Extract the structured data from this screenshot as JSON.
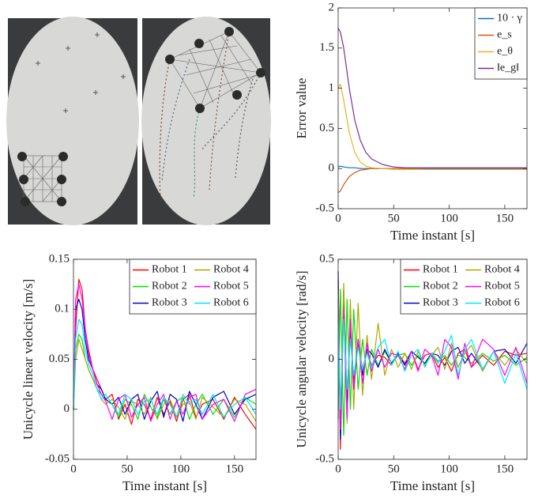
{
  "chart_data": [
    {
      "type": "line",
      "xlabel": "Time instant [s]",
      "ylabel": "Error value",
      "x": [
        0,
        2,
        5,
        10,
        15,
        20,
        25,
        30,
        40,
        50,
        60,
        80,
        100,
        130,
        170
      ],
      "series": [
        {
          "name": "10 · γ",
          "color": "#0072bd",
          "values": [
            0.02,
            0.03,
            0.02,
            0.01,
            0.01,
            0,
            0,
            0,
            0,
            0,
            0,
            0,
            0,
            0,
            0
          ]
        },
        {
          "name": "e_s",
          "color": "#d95319",
          "values": [
            -0.3,
            -0.28,
            -0.2,
            -0.1,
            -0.05,
            -0.02,
            -0.01,
            0,
            0,
            0,
            0,
            -0.01,
            -0.01,
            -0.01,
            -0.01
          ]
        },
        {
          "name": "e_θ",
          "color": "#edb120",
          "values": [
            1.0,
            1.05,
            0.85,
            0.45,
            0.2,
            0.08,
            0.03,
            0.01,
            0,
            -0.01,
            -0.01,
            -0.01,
            -0.01,
            -0.01,
            -0.01
          ]
        },
        {
          "name": "‖e_g‖",
          "color": "#7e2f8e",
          "values": [
            1.75,
            1.7,
            1.5,
            1.0,
            0.6,
            0.35,
            0.2,
            0.12,
            0.05,
            0.02,
            0.01,
            0.01,
            0.01,
            0.01,
            0.01
          ]
        }
      ],
      "xlim": [
        0,
        170
      ],
      "ylim": [
        -0.5,
        2
      ],
      "xticks": [
        0,
        50,
        100,
        150
      ],
      "yticks": [
        -0.5,
        0,
        0.5,
        1,
        1.5,
        2
      ],
      "legend": "upper right",
      "legend_columns": 1
    },
    {
      "type": "line",
      "xlabel": "Time instant [s]",
      "ylabel": "Unicycle linear velocity [m/s]",
      "x": [
        0,
        2,
        5,
        8,
        11,
        14,
        18,
        22,
        26,
        30,
        36,
        42,
        48,
        54,
        60,
        66,
        72,
        78,
        84,
        90,
        96,
        102,
        108,
        114,
        120,
        130,
        140,
        150,
        160,
        170
      ],
      "series": [
        {
          "name": "Robot 1",
          "color": "#ff0000",
          "values": [
            0,
            0.08,
            0.13,
            0.12,
            0.08,
            0.06,
            0.04,
            0.03,
            0.02,
            0.01,
            0.015,
            -0.01,
            0.005,
            -0.015,
            0.01,
            0.005,
            -0.01,
            0.012,
            -0.005,
            0.008,
            -0.012,
            0.01,
            0.015,
            -0.008,
            0.005,
            0.01,
            -0.01,
            0.012,
            -0.005,
            -0.02
          ]
        },
        {
          "name": "Robot 2",
          "color": "#00e000",
          "values": [
            0,
            0.06,
            0.075,
            0.07,
            0.05,
            0.04,
            0.03,
            0.02,
            0.015,
            0.01,
            0.005,
            -0.008,
            0.01,
            0.005,
            -0.01,
            0.015,
            0.002,
            -0.008,
            0.01,
            -0.005,
            0.008,
            0.012,
            -0.01,
            0.005,
            0.015,
            -0.005,
            0.01,
            -0.008,
            0.012,
            0.005
          ]
        },
        {
          "name": "Robot 3",
          "color": "#0000cc",
          "values": [
            0,
            0.1,
            0.11,
            0.1,
            0.07,
            0.05,
            0.04,
            0.025,
            0.02,
            0.01,
            0.005,
            0.012,
            -0.005,
            0.01,
            0.015,
            -0.01,
            0.008,
            0.018,
            -0.008,
            0.015,
            0.01,
            -0.012,
            0.018,
            0.005,
            -0.01,
            0.012,
            0.018,
            -0.005,
            0.01,
            0.015
          ]
        },
        {
          "name": "Robot 4",
          "color": "#aaaa00",
          "values": [
            0,
            0.05,
            0.07,
            0.06,
            0.05,
            0.04,
            0.03,
            0.02,
            0.01,
            0.005,
            0.01,
            0.002,
            -0.01,
            0.008,
            0.005,
            -0.005,
            0.012,
            -0.01,
            0.005,
            0.01,
            -0.008,
            0.005,
            0.008,
            -0.01,
            0.012,
            0.002,
            -0.008,
            0.01,
            0.005,
            -0.012
          ]
        },
        {
          "name": "Robot 5",
          "color": "#ff00ff",
          "values": [
            0,
            0.11,
            0.125,
            0.11,
            0.08,
            0.055,
            0.04,
            0.025,
            0.015,
            0.008,
            -0.01,
            0.01,
            0.015,
            -0.008,
            0.005,
            0.012,
            -0.012,
            0.005,
            0.015,
            -0.01,
            0.008,
            -0.005,
            0.012,
            0.015,
            -0.01,
            0.005,
            0.01,
            -0.012,
            0.015,
            0.02
          ]
        },
        {
          "name": "Robot 6",
          "color": "#00e5ff",
          "values": [
            0,
            0.07,
            0.09,
            0.085,
            0.06,
            0.045,
            0.035,
            0.02,
            0.01,
            0.015,
            0.005,
            -0.005,
            0.015,
            0.01,
            -0.005,
            0.008,
            0.01,
            -0.005,
            0.012,
            0.005,
            -0.008,
            0.015,
            0.005,
            0.01,
            -0.005,
            0.015,
            -0.008,
            0.005,
            0.012,
            -0.005
          ]
        }
      ],
      "xlim": [
        0,
        170
      ],
      "ylim": [
        -0.05,
        0.15
      ],
      "xticks": [
        0,
        50,
        100,
        150
      ],
      "yticks": [
        -0.05,
        0,
        0.05,
        0.1,
        0.15
      ],
      "legend": "upper right",
      "legend_columns": 2
    },
    {
      "type": "line",
      "xlabel": "Time instant [s]",
      "ylabel": "Unicycle angular velocity [rad/s]",
      "x": [
        0,
        2,
        5,
        8,
        11,
        14,
        18,
        22,
        26,
        30,
        36,
        42,
        48,
        54,
        60,
        66,
        72,
        78,
        84,
        90,
        96,
        102,
        108,
        114,
        120,
        130,
        140,
        150,
        160,
        170
      ],
      "series": [
        {
          "name": "Robot 1",
          "color": "#ff0000",
          "values": [
            0.4,
            -0.45,
            0.3,
            -0.2,
            0.15,
            -0.1,
            0.08,
            -0.05,
            0.04,
            -0.03,
            0.02,
            0.01,
            -0.03,
            0.03,
            -0.02,
            0.04,
            -0.05,
            0.02,
            0.03,
            -0.04,
            0.01,
            -0.06,
            0.03,
            0.05,
            -0.04,
            0.02,
            -0.03,
            0.04,
            0.02,
            0.03
          ]
        },
        {
          "name": "Robot 2",
          "color": "#00e000",
          "values": [
            -0.3,
            0.35,
            -0.38,
            0.3,
            -0.25,
            0.25,
            -0.15,
            0.1,
            -0.08,
            0.05,
            -0.03,
            0.04,
            -0.02,
            0.02,
            0.03,
            -0.03,
            0.02,
            -0.02,
            0.03,
            -0.01,
            0.02,
            -0.03,
            0.02,
            0.01,
            -0.02,
            0.03,
            -0.01,
            0.02,
            -0.03,
            0.01
          ]
        },
        {
          "name": "Robot 3",
          "color": "#0000cc",
          "values": [
            0.44,
            -0.4,
            0.35,
            -0.25,
            0.2,
            -0.15,
            0.1,
            -0.08,
            0.05,
            0.03,
            -0.04,
            0.05,
            -0.02,
            0.03,
            -0.03,
            0.04,
            0.01,
            -0.02,
            0.03,
            0.02,
            -0.03,
            0.04,
            0.06,
            -0.02,
            0.03,
            -0.05,
            0.04,
            0.05,
            -0.02,
            0.08
          ]
        },
        {
          "name": "Robot 4",
          "color": "#aaaa00",
          "values": [
            0.35,
            -0.3,
            0.38,
            -0.32,
            0.3,
            -0.25,
            0.28,
            -0.18,
            0.12,
            -0.1,
            0.18,
            -0.08,
            0.05,
            -0.04,
            0.03,
            -0.05,
            0.04,
            -0.03,
            0.02,
            0.06,
            -0.05,
            0.08,
            -0.04,
            0.03,
            0.07,
            -0.06,
            0.04,
            -0.03,
            0.05,
            -0.02
          ]
        },
        {
          "name": "Robot 5",
          "color": "#ff00ff",
          "values": [
            0.3,
            -0.35,
            0.25,
            -0.3,
            0.2,
            -0.15,
            0.1,
            -0.12,
            0.08,
            -0.06,
            0.05,
            -0.04,
            0.03,
            0.02,
            -0.05,
            0.04,
            -0.06,
            0.05,
            0.02,
            -0.08,
            0.1,
            0.06,
            -0.1,
            0.08,
            -0.04,
            0.1,
            0.05,
            -0.08,
            0.06,
            -0.12
          ]
        },
        {
          "name": "Robot 6",
          "color": "#00e5ff",
          "values": [
            0.2,
            -0.25,
            0.2,
            -0.15,
            0.1,
            -0.08,
            0.06,
            -0.05,
            0.03,
            -0.04,
            0.06,
            0.1,
            -0.03,
            0.04,
            -0.06,
            0.02,
            0.05,
            -0.04,
            0.03,
            -0.02,
            0.04,
            0.12,
            -0.08,
            0.05,
            0.1,
            -0.05,
            0.04,
            -0.12,
            0.03,
            -0.15
          ]
        }
      ],
      "xlim": [
        0,
        170
      ],
      "ylim": [
        -0.5,
        0.5
      ],
      "xticks": [
        0,
        50,
        100,
        150
      ],
      "yticks": [
        -0.5,
        0,
        0.5
      ],
      "legend": "upper right",
      "legend_columns": 2
    }
  ]
}
